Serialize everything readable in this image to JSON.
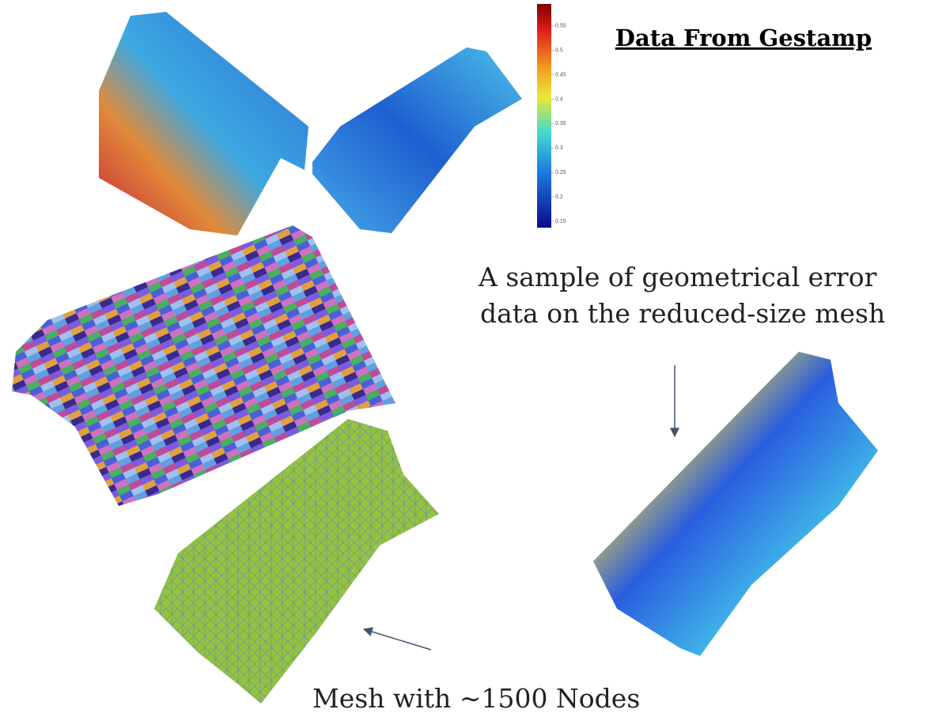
{
  "header": {
    "title": "Data From Gestamp"
  },
  "caption": {
    "lines": [
      "A sample of geometrical error",
      "data on the reduced-size mesh"
    ]
  },
  "mesh_label": "Mesh with ∼1500 Nodes",
  "colorbar": {
    "range": [
      0.137,
      0.595
    ],
    "ticks": [
      0.55,
      0.5,
      0.45,
      0.4,
      0.35,
      0.3,
      0.25,
      0.2,
      0.15
    ]
  }
}
